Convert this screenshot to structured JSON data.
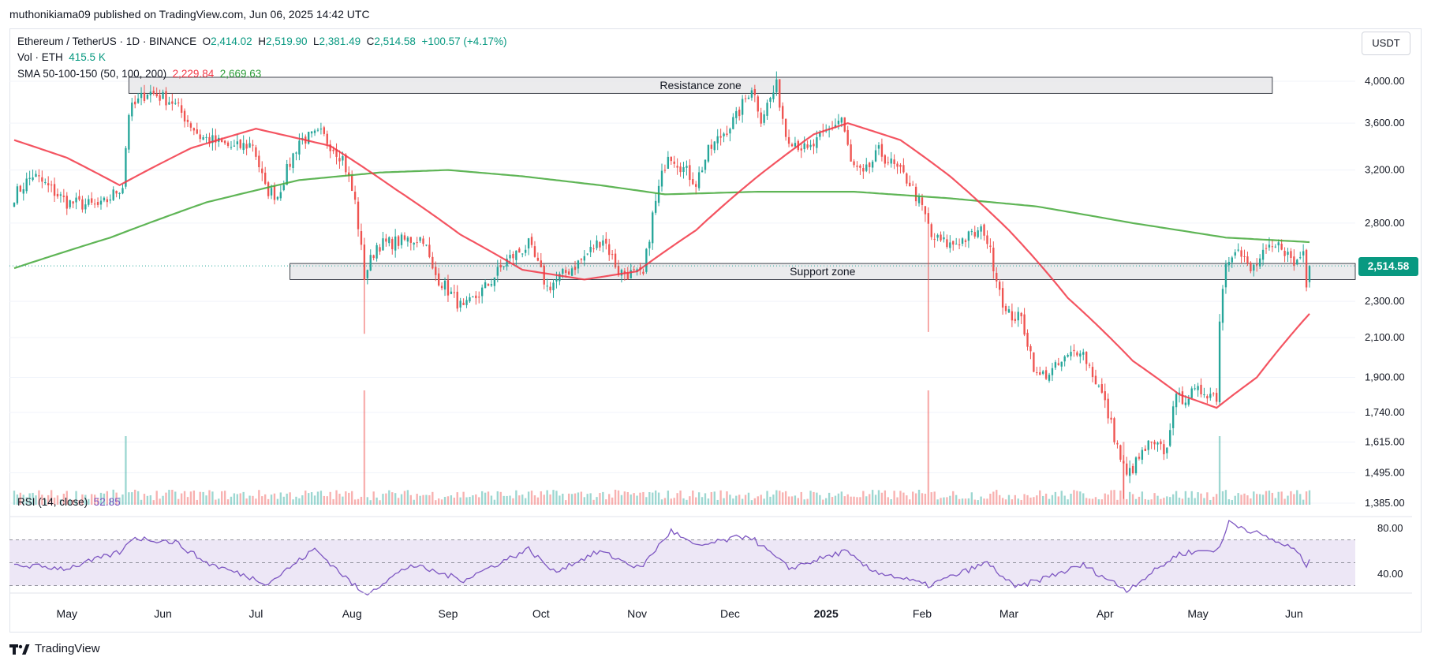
{
  "header": {
    "published_line": "muthonikiama09 published on TradingView.com, Jun 06, 2025 14:42 UTC"
  },
  "legend": {
    "symbol": "Ethereum / TetherUS · 1D · BINANCE",
    "o_label": "O",
    "o_value": "2,414.02",
    "h_label": "H",
    "h_value": "2,519.90",
    "l_label": "L",
    "l_value": "2,381.49",
    "c_label": "C",
    "c_value": "2,514.58",
    "change": "+100.57 (+4.17%)",
    "vol_label": "Vol · ETH",
    "vol_value": "415.5 K",
    "sma_label": "SMA 50-100-150 (50, 100, 200)",
    "sma_value_1": "2,229.84",
    "sma_value_2": "2,669.63",
    "rsi_label": "RSI (14, close)",
    "rsi_value": "52.85"
  },
  "currency_button": "USDT",
  "last_price": "2,514.58",
  "brand": "TradingView",
  "colors": {
    "up": "#26a69a",
    "down": "#ef5350",
    "sma_fast": "#f23645",
    "sma_slow": "#43a838",
    "rsi_line": "#7e57c2",
    "rsi_band": "#ede7f6"
  },
  "chart_data": {
    "type": "candlestick",
    "x_axis_labels": [
      "May",
      "Jun",
      "Jul",
      "Aug",
      "Sep",
      "Oct",
      "Nov",
      "Dec",
      "2025",
      "Feb",
      "Mar",
      "Apr",
      "May",
      "Jun"
    ],
    "price_axis": {
      "scale": "log",
      "ticks": [
        {
          "value": 4000,
          "label": "4,000.00"
        },
        {
          "value": 3600,
          "label": "3,600.00"
        },
        {
          "value": 3200,
          "label": "3,200.00"
        },
        {
          "value": 2800,
          "label": "2,800.00"
        },
        {
          "value": 2300,
          "label": "2,300.00"
        },
        {
          "value": 2100,
          "label": "2,100.00"
        },
        {
          "value": 1900,
          "label": "1,900.00"
        },
        {
          "value": 1740,
          "label": "1,740.00"
        },
        {
          "value": 1615,
          "label": "1,615.00"
        },
        {
          "value": 1495,
          "label": "1,495.00"
        },
        {
          "value": 1385,
          "label": "1,385.00"
        }
      ]
    },
    "price_anchors": [
      {
        "date": "2024-04-14",
        "close": 3000
      },
      {
        "date": "2024-04-20",
        "close": 3160
      },
      {
        "date": "2024-05-01",
        "close": 2950
      },
      {
        "date": "2024-05-12",
        "close": 2920
      },
      {
        "date": "2024-05-19",
        "close": 3080
      },
      {
        "date": "2024-05-21",
        "close": 3700
      },
      {
        "date": "2024-05-27",
        "close": 3900
      },
      {
        "date": "2024-06-04",
        "close": 3800
      },
      {
        "date": "2024-06-13",
        "close": 3480
      },
      {
        "date": "2024-06-24",
        "close": 3380
      },
      {
        "date": "2024-06-30",
        "close": 3420
      },
      {
        "date": "2024-07-04",
        "close": 3050
      },
      {
        "date": "2024-07-08",
        "close": 3000
      },
      {
        "date": "2024-07-15",
        "close": 3450
      },
      {
        "date": "2024-07-22",
        "close": 3500
      },
      {
        "date": "2024-07-29",
        "close": 3300
      },
      {
        "date": "2024-08-02",
        "close": 2950
      },
      {
        "date": "2024-08-05",
        "close": 2450
      },
      {
        "date": "2024-08-09",
        "close": 2650
      },
      {
        "date": "2024-08-24",
        "close": 2700
      },
      {
        "date": "2024-08-27",
        "close": 2480
      },
      {
        "date": "2024-09-06",
        "close": 2250
      },
      {
        "date": "2024-09-14",
        "close": 2400
      },
      {
        "date": "2024-09-20",
        "close": 2550
      },
      {
        "date": "2024-09-27",
        "close": 2650
      },
      {
        "date": "2024-10-03",
        "close": 2380
      },
      {
        "date": "2024-10-14",
        "close": 2550
      },
      {
        "date": "2024-10-21",
        "close": 2700
      },
      {
        "date": "2024-10-26",
        "close": 2480
      },
      {
        "date": "2024-11-03",
        "close": 2450
      },
      {
        "date": "2024-11-06",
        "close": 2850
      },
      {
        "date": "2024-11-11",
        "close": 3350
      },
      {
        "date": "2024-11-20",
        "close": 3100
      },
      {
        "date": "2024-11-24",
        "close": 3350
      },
      {
        "date": "2024-12-03",
        "close": 3650
      },
      {
        "date": "2024-12-08",
        "close": 3950
      },
      {
        "date": "2024-12-11",
        "close": 3650
      },
      {
        "date": "2024-12-16",
        "close": 3950
      },
      {
        "date": "2024-12-19",
        "close": 3500
      },
      {
        "date": "2024-12-26",
        "close": 3350
      },
      {
        "date": "2025-01-06",
        "close": 3650
      },
      {
        "date": "2025-01-09",
        "close": 3250
      },
      {
        "date": "2025-01-13",
        "close": 3150
      },
      {
        "date": "2025-01-18",
        "close": 3350
      },
      {
        "date": "2025-01-28",
        "close": 3100
      },
      {
        "date": "2025-02-02",
        "close": 2850
      },
      {
        "date": "2025-02-04",
        "close": 2700
      },
      {
        "date": "2025-02-10",
        "close": 2650
      },
      {
        "date": "2025-02-21",
        "close": 2750
      },
      {
        "date": "2025-02-25",
        "close": 2450
      },
      {
        "date": "2025-02-28",
        "close": 2230
      },
      {
        "date": "2025-03-05",
        "close": 2200
      },
      {
        "date": "2025-03-10",
        "close": 1900
      },
      {
        "date": "2025-03-15",
        "close": 1930
      },
      {
        "date": "2025-03-24",
        "close": 2050
      },
      {
        "date": "2025-03-31",
        "close": 1820
      },
      {
        "date": "2025-04-06",
        "close": 1550
      },
      {
        "date": "2025-04-08",
        "close": 1480
      },
      {
        "date": "2025-04-15",
        "close": 1600
      },
      {
        "date": "2025-04-21",
        "close": 1580
      },
      {
        "date": "2025-04-23",
        "close": 1790
      },
      {
        "date": "2025-05-03",
        "close": 1840
      },
      {
        "date": "2025-05-07",
        "close": 1810
      },
      {
        "date": "2025-05-08",
        "close": 2200
      },
      {
        "date": "2025-05-10",
        "close": 2550
      },
      {
        "date": "2025-05-13",
        "close": 2640
      },
      {
        "date": "2025-05-18",
        "close": 2480
      },
      {
        "date": "2025-05-23",
        "close": 2600
      },
      {
        "date": "2025-05-28",
        "close": 2650
      },
      {
        "date": "2025-06-01",
        "close": 2520
      },
      {
        "date": "2025-06-04",
        "close": 2610
      },
      {
        "date": "2025-06-05",
        "close": 2414
      },
      {
        "date": "2025-06-06",
        "close": 2514.58
      }
    ],
    "sma50_anchors": [
      {
        "date": "2024-04-14",
        "value": 3450
      },
      {
        "date": "2024-05-01",
        "value": 3300
      },
      {
        "date": "2024-05-18",
        "value": 3080
      },
      {
        "date": "2024-06-10",
        "value": 3380
      },
      {
        "date": "2024-07-01",
        "value": 3550
      },
      {
        "date": "2024-07-25",
        "value": 3400
      },
      {
        "date": "2024-08-15",
        "value": 3050
      },
      {
        "date": "2024-09-05",
        "value": 2720
      },
      {
        "date": "2024-09-25",
        "value": 2490
      },
      {
        "date": "2024-10-15",
        "value": 2430
      },
      {
        "date": "2024-11-01",
        "value": 2480
      },
      {
        "date": "2024-11-20",
        "value": 2750
      },
      {
        "date": "2024-12-10",
        "value": 3150
      },
      {
        "date": "2024-12-28",
        "value": 3500
      },
      {
        "date": "2025-01-08",
        "value": 3600
      },
      {
        "date": "2025-01-25",
        "value": 3450
      },
      {
        "date": "2025-02-10",
        "value": 3150
      },
      {
        "date": "2025-03-01",
        "value": 2750
      },
      {
        "date": "2025-03-20",
        "value": 2320
      },
      {
        "date": "2025-04-10",
        "value": 1980
      },
      {
        "date": "2025-04-25",
        "value": 1820
      },
      {
        "date": "2025-05-07",
        "value": 1760
      },
      {
        "date": "2025-05-20",
        "value": 1900
      },
      {
        "date": "2025-06-06",
        "value": 2229.84
      }
    ],
    "sma200_anchors": [
      {
        "date": "2024-04-14",
        "value": 2500
      },
      {
        "date": "2024-05-15",
        "value": 2700
      },
      {
        "date": "2024-06-15",
        "value": 2950
      },
      {
        "date": "2024-07-15",
        "value": 3120
      },
      {
        "date": "2024-08-10",
        "value": 3180
      },
      {
        "date": "2024-09-01",
        "value": 3200
      },
      {
        "date": "2024-09-25",
        "value": 3150
      },
      {
        "date": "2024-10-20",
        "value": 3080
      },
      {
        "date": "2024-11-10",
        "value": 3010
      },
      {
        "date": "2024-12-10",
        "value": 3030
      },
      {
        "date": "2025-01-10",
        "value": 3030
      },
      {
        "date": "2025-02-10",
        "value": 2980
      },
      {
        "date": "2025-03-10",
        "value": 2920
      },
      {
        "date": "2025-04-10",
        "value": 2800
      },
      {
        "date": "2025-05-10",
        "value": 2700
      },
      {
        "date": "2025-06-06",
        "value": 2669.63
      }
    ],
    "zones": [
      {
        "label": "Resistance zone",
        "from": 3880,
        "to": 4040,
        "start": "2024-05-21",
        "end": "2025-05-25"
      },
      {
        "label": "Support zone",
        "from": 2430,
        "to": 2530,
        "start": "2024-07-12",
        "end": "2025-06-06"
      }
    ],
    "rsi": {
      "axis_ticks": [
        {
          "value": 80,
          "label": "80.00"
        },
        {
          "value": 40,
          "label": "40.00"
        }
      ],
      "upper_band": 70,
      "lower_band": 30,
      "anchors": [
        {
          "date": "2024-04-14",
          "value": 48
        },
        {
          "date": "2024-05-01",
          "value": 45
        },
        {
          "date": "2024-05-19",
          "value": 60
        },
        {
          "date": "2024-05-22",
          "value": 72
        },
        {
          "date": "2024-06-05",
          "value": 68
        },
        {
          "date": "2024-06-15",
          "value": 50
        },
        {
          "date": "2024-07-05",
          "value": 32
        },
        {
          "date": "2024-07-20",
          "value": 62
        },
        {
          "date": "2024-08-05",
          "value": 22
        },
        {
          "date": "2024-08-20",
          "value": 48
        },
        {
          "date": "2024-09-06",
          "value": 35
        },
        {
          "date": "2024-09-27",
          "value": 62
        },
        {
          "date": "2024-10-05",
          "value": 42
        },
        {
          "date": "2024-10-20",
          "value": 60
        },
        {
          "date": "2024-11-02",
          "value": 45
        },
        {
          "date": "2024-11-12",
          "value": 78
        },
        {
          "date": "2024-11-20",
          "value": 64
        },
        {
          "date": "2024-12-07",
          "value": 74
        },
        {
          "date": "2024-12-20",
          "value": 45
        },
        {
          "date": "2025-01-07",
          "value": 60
        },
        {
          "date": "2025-01-15",
          "value": 44
        },
        {
          "date": "2025-02-03",
          "value": 30
        },
        {
          "date": "2025-02-22",
          "value": 50
        },
        {
          "date": "2025-03-03",
          "value": 28
        },
        {
          "date": "2025-03-25",
          "value": 48
        },
        {
          "date": "2025-04-08",
          "value": 26
        },
        {
          "date": "2025-04-25",
          "value": 58
        },
        {
          "date": "2025-05-08",
          "value": 62
        },
        {
          "date": "2025-05-11",
          "value": 86
        },
        {
          "date": "2025-05-25",
          "value": 70
        },
        {
          "date": "2025-06-01",
          "value": 62
        },
        {
          "date": "2025-06-05",
          "value": 48
        },
        {
          "date": "2025-06-06",
          "value": 52.85
        }
      ]
    },
    "volume_spikes": [
      {
        "date": "2024-05-20",
        "level": 0.6
      },
      {
        "date": "2024-08-05",
        "level": 1.0
      },
      {
        "date": "2025-02-03",
        "level": 1.0
      },
      {
        "date": "2025-04-07",
        "level": 0.55
      },
      {
        "date": "2025-05-08",
        "level": 0.6
      }
    ]
  }
}
